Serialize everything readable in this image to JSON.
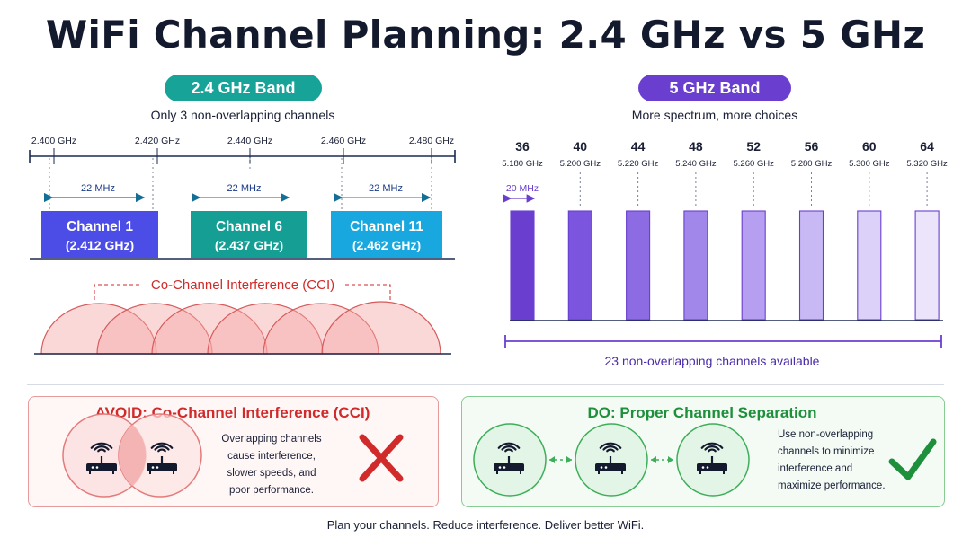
{
  "title": "WiFi Channel Planning: 2.4 GHz vs 5 GHz",
  "band24": {
    "label": "2.4 GHz Band",
    "subtitle": "Only 3 non-overlapping channels",
    "freq_ticks": [
      "2.400 GHz",
      "2.420 GHz",
      "2.440 GHz",
      "2.460 GHz",
      "2.480 GHz"
    ],
    "width_label": "22 MHz",
    "channels": [
      {
        "name": "Channel 1",
        "freq": "(2.412 GHz)",
        "color": "#4b4de6"
      },
      {
        "name": "Channel 6",
        "freq": "(2.437 GHz)",
        "color": "#159e94"
      },
      {
        "name": "Channel 11",
        "freq": "(2.462 GHz)",
        "color": "#18a7df"
      }
    ],
    "interference_label": "Co-Channel Interference (CCI)"
  },
  "band5": {
    "label": "5 GHz Band",
    "subtitle": "More spectrum, more choices",
    "width_label": "20 MHz",
    "channels": [
      {
        "num": "36",
        "freq": "5.180 GHz",
        "color": "#6a3fd0"
      },
      {
        "num": "40",
        "freq": "5.200 GHz",
        "color": "#7c55de"
      },
      {
        "num": "44",
        "freq": "5.220 GHz",
        "color": "#8c6be3"
      },
      {
        "num": "48",
        "freq": "5.240 GHz",
        "color": "#a287ea"
      },
      {
        "num": "52",
        "freq": "5.260 GHz",
        "color": "#b69ff0"
      },
      {
        "num": "56",
        "freq": "5.280 GHz",
        "color": "#c8b8f4"
      },
      {
        "num": "60",
        "freq": "5.300 GHz",
        "color": "#dcd1f8"
      },
      {
        "num": "64",
        "freq": "5.320 GHz",
        "color": "#ebe4fb"
      }
    ],
    "summary": "23 non-overlapping channels available"
  },
  "avoid": {
    "title": "AVOID: Co-Channel Interference (CCI)",
    "text": [
      "Overlapping channels",
      "cause interference,",
      "slower speeds, and",
      "poor performance."
    ]
  },
  "do": {
    "title": "DO: Proper Channel Separation",
    "text": [
      "Use non-overlapping",
      "channels to minimize",
      "interference and",
      "maximize performance."
    ]
  },
  "footer": "Plan your channels. Reduce interference. Deliver better WiFi.",
  "colors": {
    "teal": "#17a398",
    "purple": "#6a3fd0",
    "red": "#d02a2a",
    "green": "#1e8f3b"
  }
}
